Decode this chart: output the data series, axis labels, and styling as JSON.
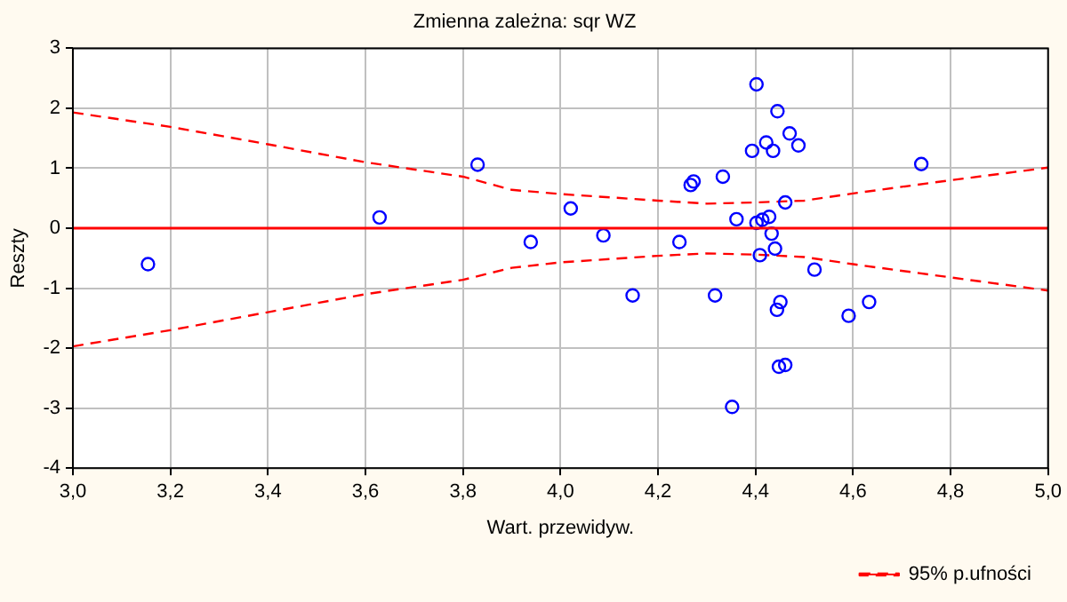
{
  "chart_data": {
    "type": "scatter",
    "title": "Zmienna zależna: sqr WZ",
    "xlabel": "Wart. przewidyw.",
    "ylabel": "Reszty",
    "xlim": [
      3.0,
      5.0
    ],
    "xticks": [
      {
        "value": 3.0,
        "label": "3,0"
      },
      {
        "value": 3.2,
        "label": "3,2"
      },
      {
        "value": 3.4,
        "label": "3,4"
      },
      {
        "value": 3.6,
        "label": "3,6"
      },
      {
        "value": 3.8,
        "label": "3,8"
      },
      {
        "value": 4.0,
        "label": "4,0"
      },
      {
        "value": 4.2,
        "label": "4,2"
      },
      {
        "value": 4.4,
        "label": "4,4"
      },
      {
        "value": 4.6,
        "label": "4,6"
      },
      {
        "value": 4.8,
        "label": "4,8"
      },
      {
        "value": 5.0,
        "label": "5,0"
      }
    ],
    "ylim": [
      -4,
      3
    ],
    "yticks": [
      -4,
      -3,
      -2,
      -1,
      0,
      1,
      2,
      3
    ],
    "grid": true,
    "legend": "bottom right",
    "ref_lines": [
      {
        "axis": "y",
        "value": 0,
        "color": "#ff0000"
      }
    ],
    "series": [
      {
        "color": "#0000ff",
        "marker": "circle",
        "x": [
          3.154,
          3.629,
          3.83,
          3.939,
          4.021,
          4.088,
          4.148,
          4.244,
          4.267,
          4.273,
          4.317,
          4.333,
          4.352,
          4.361,
          4.393,
          4.402,
          4.402,
          4.409,
          4.414,
          4.422,
          4.428,
          4.433,
          4.436,
          4.44,
          4.445,
          4.444,
          4.451,
          4.448,
          4.461,
          4.461,
          4.47,
          4.488,
          4.521,
          4.591,
          4.633,
          4.74
        ],
        "values": [
          -0.6,
          0.18,
          1.06,
          -0.23,
          0.33,
          -0.12,
          -1.12,
          -0.23,
          0.72,
          0.78,
          -1.12,
          0.86,
          -2.98,
          0.15,
          1.29,
          2.4,
          0.09,
          -0.45,
          0.14,
          1.43,
          0.19,
          -0.09,
          1.29,
          -0.34,
          1.95,
          -1.36,
          -1.23,
          -2.31,
          -2.28,
          0.43,
          1.58,
          1.38,
          -0.69,
          -1.46,
          -1.23,
          1.07
        ]
      },
      {
        "type": "line",
        "name": "95% p.ufności",
        "color": "#ff0000",
        "line_style": "dashed",
        "marker": "none",
        "x": [
          3.0,
          3.2,
          3.4,
          3.6,
          3.8,
          3.9,
          4.0,
          4.2,
          4.3,
          4.4,
          4.5,
          4.6,
          4.8,
          5.0
        ],
        "values": [
          1.93,
          1.69,
          1.4,
          1.1,
          0.86,
          0.64,
          0.57,
          0.46,
          0.41,
          0.43,
          0.46,
          0.58,
          0.8,
          1.01
        ]
      },
      {
        "type": "line",
        "color": "#ff0000",
        "line_style": "dashed",
        "marker": "none",
        "x": [
          3.0,
          3.2,
          3.4,
          3.6,
          3.8,
          3.9,
          4.0,
          4.2,
          4.3,
          4.4,
          4.5,
          4.6,
          4.8,
          5.0
        ],
        "values": [
          -1.97,
          -1.7,
          -1.4,
          -1.1,
          -0.86,
          -0.66,
          -0.57,
          -0.46,
          -0.42,
          -0.44,
          -0.48,
          -0.6,
          -0.82,
          -1.04
        ]
      }
    ]
  }
}
